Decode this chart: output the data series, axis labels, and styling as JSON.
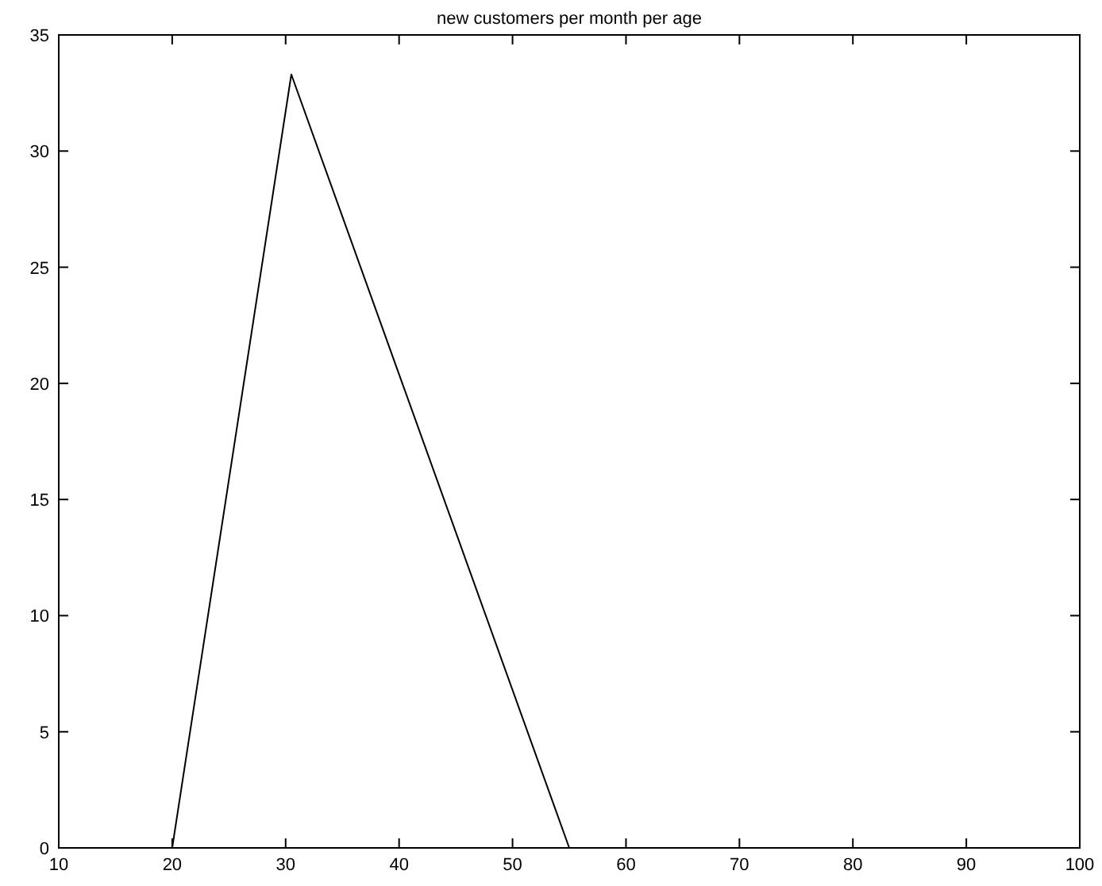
{
  "chart_data": {
    "type": "line",
    "title": "new customers per month per age",
    "x": [
      10,
      20,
      30.5,
      55,
      100
    ],
    "series": [
      {
        "color": "#000000",
        "values": [
          0,
          0,
          33.3,
          0,
          0
        ]
      }
    ],
    "xlim": [
      10,
      100
    ],
    "xticks": [
      10,
      20,
      30,
      40,
      50,
      60,
      70,
      80,
      90,
      100
    ],
    "ylim": [
      0,
      35
    ],
    "yticks": [
      0,
      5,
      10,
      15,
      20,
      25,
      30,
      35
    ],
    "grid": false,
    "marker": "none",
    "line_style": "solid"
  }
}
